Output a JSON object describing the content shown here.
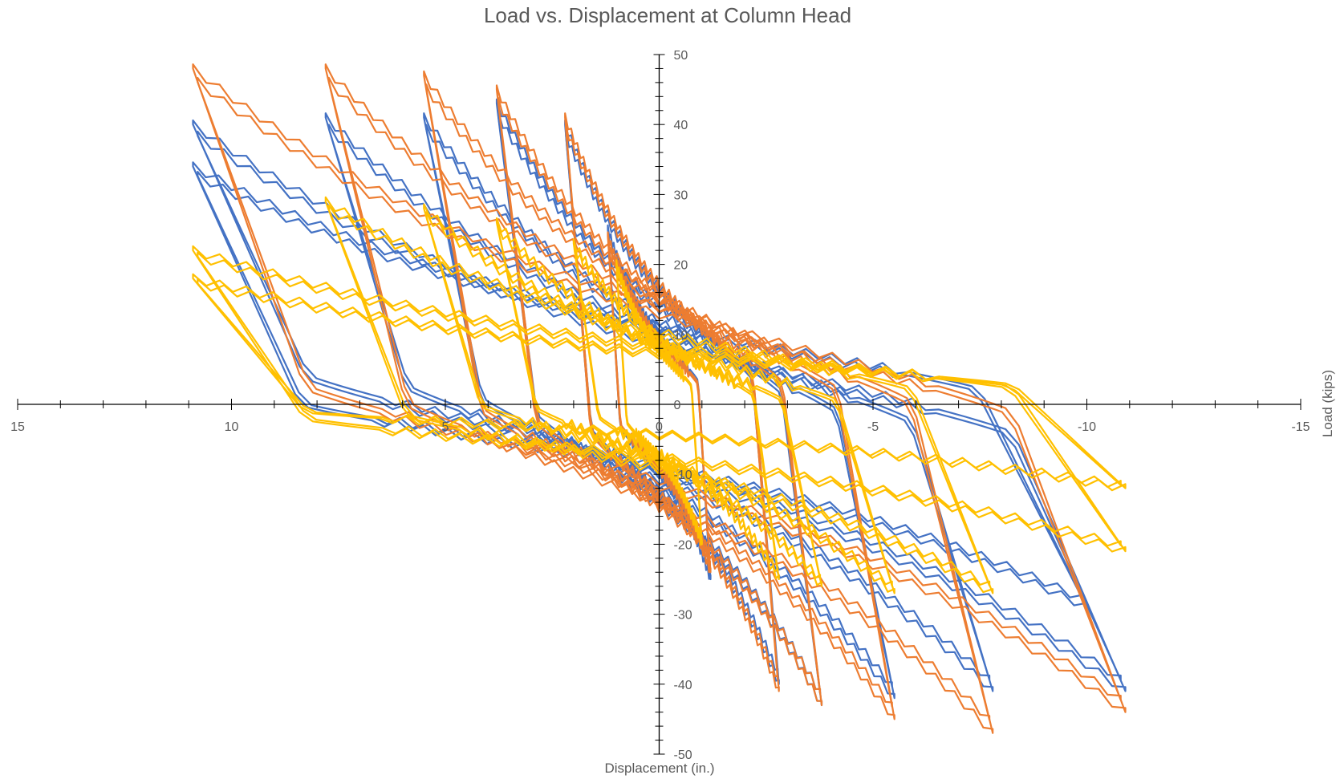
{
  "chart_data": {
    "type": "line",
    "title": "Load vs. Displacement at Column Head",
    "xlabel": "Displacement (in.)",
    "ylabel": "Load (kips)",
    "xlim": [
      15,
      -15
    ],
    "x_reversed": true,
    "ylim": [
      -50,
      50
    ],
    "x_ticks": [
      15,
      10,
      5,
      0,
      -5,
      -10,
      -15
    ],
    "x_tick_labels": [
      "15",
      "10",
      "5",
      "0",
      "-5",
      "-10",
      "-15"
    ],
    "y_ticks": [
      50,
      40,
      30,
      20,
      10,
      0,
      -10,
      -20,
      -30,
      -40,
      -50
    ],
    "y_tick_labels": [
      "50",
      "40",
      "30",
      "20",
      "10",
      "0",
      "-10",
      "-20",
      "-30",
      "-40",
      "-50"
    ],
    "grid": false,
    "legend": "none",
    "series": [
      {
        "color": "#4472C4",
        "loops": [
          {
            "xmax": 1.2,
            "xmin": -1.2,
            "ymax": 25,
            "ymin": -25,
            "ypos": 5,
            "yneg": -5
          },
          {
            "xmax": 2.2,
            "xmin": -2.8,
            "ymax": 40,
            "ymin": -40,
            "ypos": 10,
            "yneg": -10
          },
          {
            "xmax": 3.8,
            "xmin": -3.8,
            "ymax": 43,
            "ymin": -43,
            "ypos": 14,
            "yneg": -14
          },
          {
            "xmax": 5.5,
            "xmin": -5.5,
            "ymax": 41,
            "ymin": -42,
            "ypos": 17,
            "yneg": -17
          },
          {
            "xmax": 7.8,
            "xmin": -7.8,
            "ymax": 41,
            "ymin": -41,
            "ypos": 19,
            "yneg": -19
          },
          {
            "xmax": 10.9,
            "xmin": -10.9,
            "ymax": 40,
            "ymin": -41,
            "ypos": 21,
            "yneg": -21
          },
          {
            "xmax": 10.9,
            "xmin": -10.0,
            "ymax": 34,
            "ymin": -29,
            "ypos": 11,
            "yneg": -10
          }
        ]
      },
      {
        "color": "#ED7D31",
        "loops": [
          {
            "xmax": 1.2,
            "xmin": -1.2,
            "ymax": 24,
            "ymin": -24,
            "ypos": 5,
            "yneg": -5
          },
          {
            "xmax": 2.2,
            "xmin": -2.8,
            "ymax": 41,
            "ymin": -41,
            "ypos": 10,
            "yneg": -10
          },
          {
            "xmax": 3.8,
            "xmin": -3.8,
            "ymax": 45,
            "ymin": -43,
            "ypos": 13,
            "yneg": -13
          },
          {
            "xmax": 5.5,
            "xmin": -5.5,
            "ymax": 47,
            "ymin": -45,
            "ypos": 16,
            "yneg": -15
          },
          {
            "xmax": 7.8,
            "xmin": -7.8,
            "ymax": 48,
            "ymin": -47,
            "ypos": 18,
            "yneg": -18
          },
          {
            "xmax": 10.9,
            "xmin": -10.9,
            "ymax": 48,
            "ymin": -44,
            "ypos": 20,
            "yneg": -20
          }
        ]
      },
      {
        "color": "#FFC000",
        "loops": [
          {
            "xmax": 1.0,
            "xmin": -1.0,
            "ymax": 20,
            "ymin": -20,
            "ypos": 4,
            "yneg": -4
          },
          {
            "xmax": 2.0,
            "xmin": -2.8,
            "ymax": 23,
            "ymin": -25,
            "ypos": 7,
            "yneg": -7
          },
          {
            "xmax": 3.8,
            "xmin": -3.8,
            "ymax": 26,
            "ymin": -26,
            "ypos": 9,
            "yneg": -9
          },
          {
            "xmax": 5.5,
            "xmin": -5.5,
            "ymax": 28,
            "ymin": -27,
            "ypos": 10,
            "yneg": -10
          },
          {
            "xmax": 7.8,
            "xmin": -7.8,
            "ymax": 29,
            "ymin": -27,
            "ypos": 8,
            "yneg": -8
          },
          {
            "xmax": 10.9,
            "xmin": -10.9,
            "ymax": 22,
            "ymin": -21,
            "ypos": 5,
            "yneg": -5
          },
          {
            "xmax": 10.9,
            "xmin": -10.9,
            "ymax": 18,
            "ymin": -12,
            "ypos": 3,
            "yneg": -3
          }
        ]
      }
    ]
  }
}
